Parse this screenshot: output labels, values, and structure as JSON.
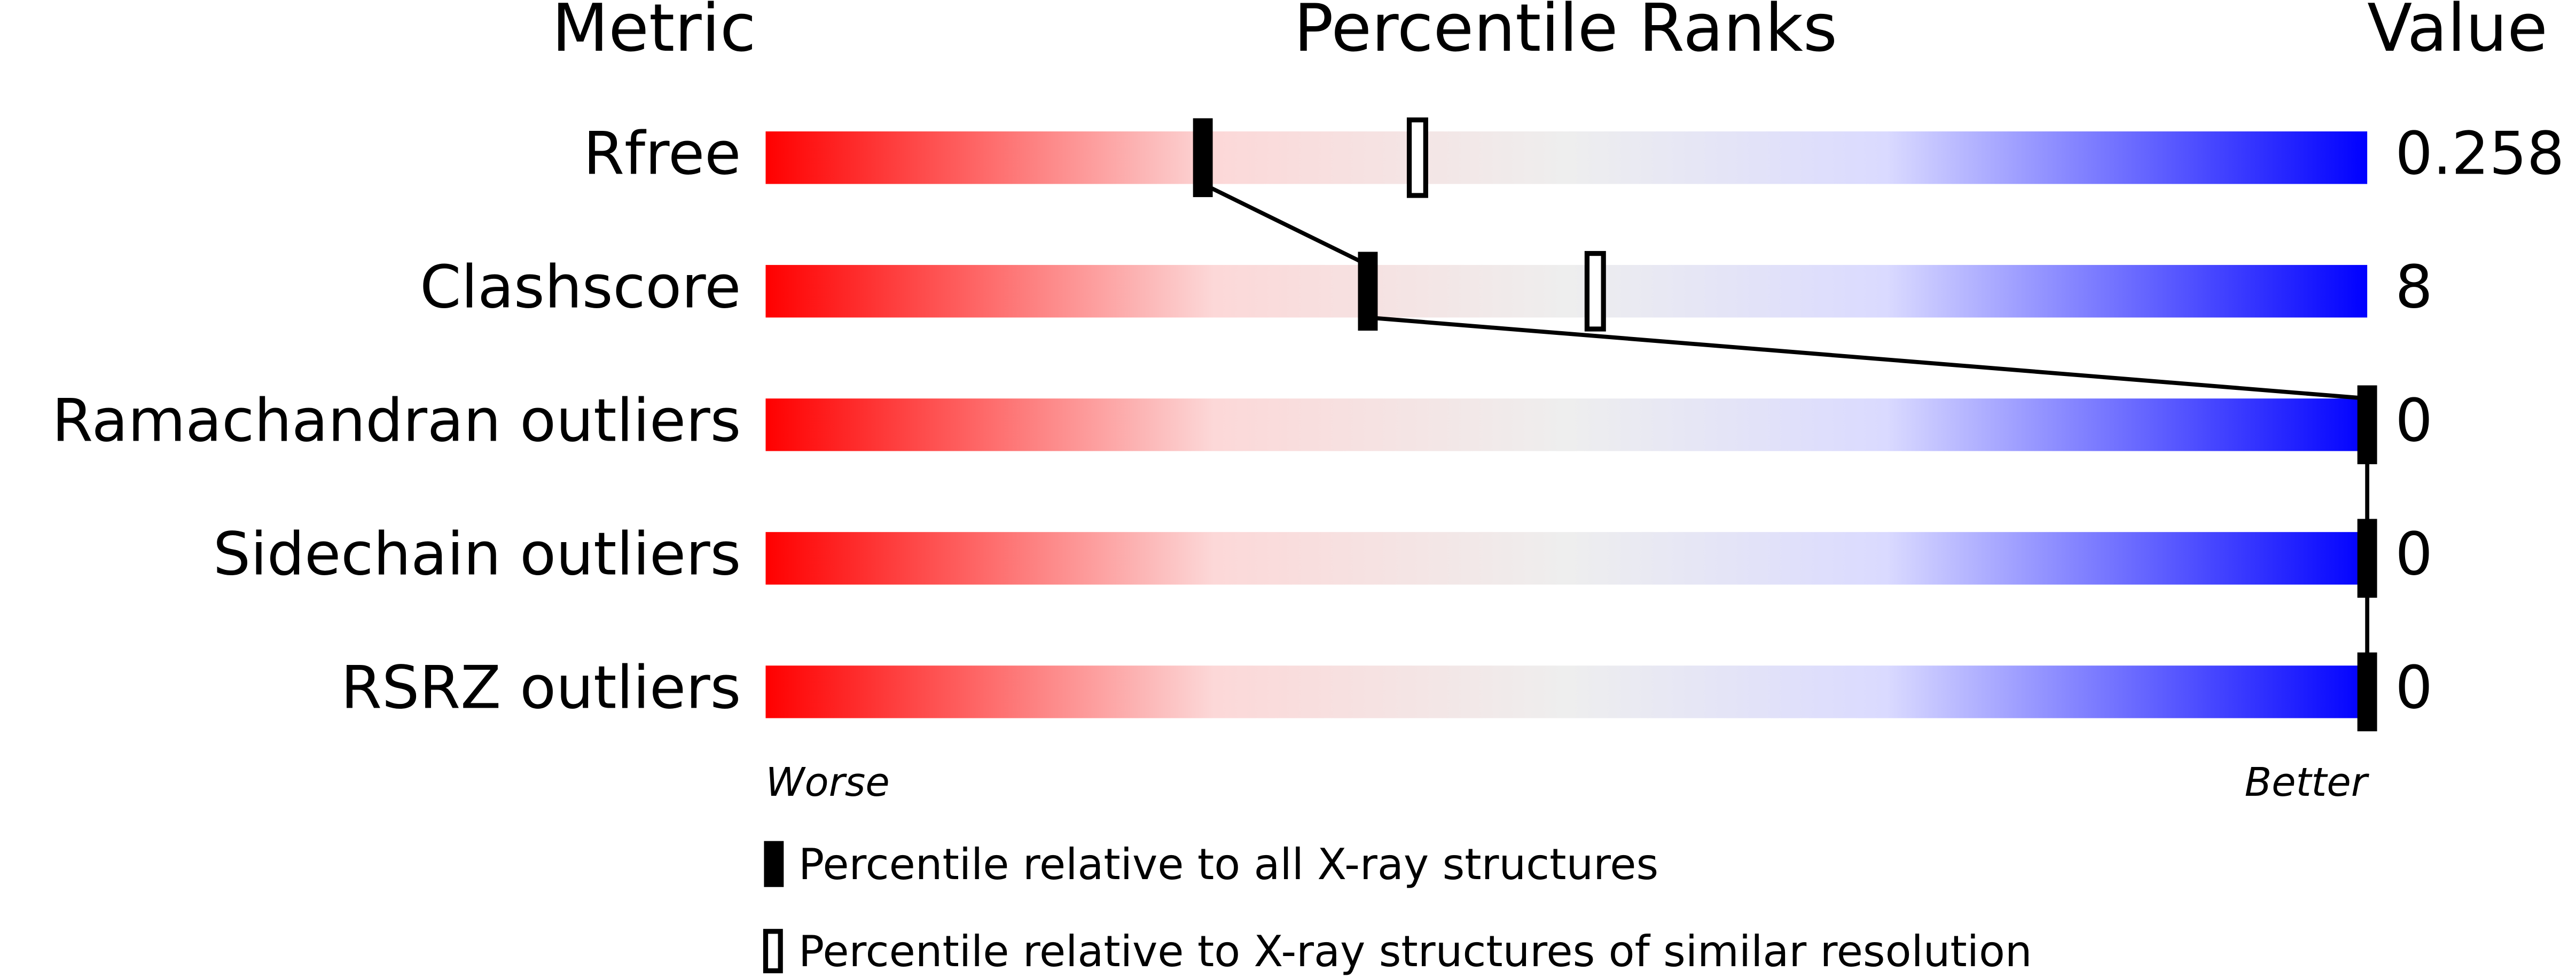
{
  "chart_data": {
    "type": "percentile",
    "headers": [
      "Metric",
      "Percentile Ranks",
      "Value"
    ],
    "categories": [
      "Rfree",
      "Clashscore",
      "Ramachandran outliers",
      "Sidechain outliers",
      "RSRZ outliers"
    ],
    "values": [
      0.258,
      8,
      0,
      0,
      0
    ],
    "series": [
      {
        "name": "Percentile relative to all X-ray structures",
        "color": "#000000",
        "values": [
          27.3,
          37.6,
          100,
          100,
          100
        ]
      },
      {
        "name": "Percentile relative to X-ray structures of similar resolution",
        "color": "#000000",
        "values": [
          40.7,
          51.8,
          null,
          null,
          null
        ]
      }
    ],
    "xlim": [
      0,
      100
    ],
    "x_start_label": "Worse",
    "x_end_label": "Better"
  }
}
